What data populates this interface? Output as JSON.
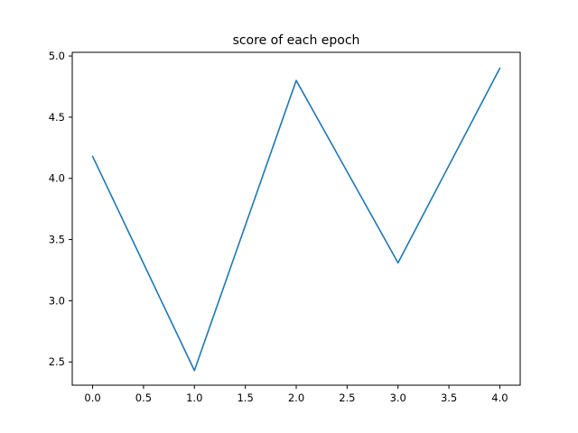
{
  "chart_data": {
    "type": "line",
    "title": "score of each epoch",
    "xlabel": "",
    "ylabel": "",
    "x": [
      0,
      1,
      2,
      3,
      4
    ],
    "series": [
      {
        "values": [
          4.18,
          2.43,
          4.8,
          3.31,
          4.9
        ],
        "color": "#1f77b4"
      }
    ],
    "xlim": [
      -0.2,
      4.2
    ],
    "ylim": [
      2.31,
      5.03
    ],
    "xticks": [
      "0.0",
      "0.5",
      "1.0",
      "1.5",
      "2.0",
      "2.5",
      "3.0",
      "3.5",
      "4.0"
    ],
    "xtick_values": [
      0,
      0.5,
      1,
      1.5,
      2,
      2.5,
      3,
      3.5,
      4
    ],
    "yticks": [
      "2.5",
      "3.0",
      "3.5",
      "4.0",
      "4.5",
      "5.0"
    ],
    "ytick_values": [
      2.5,
      3.0,
      3.5,
      4.0,
      4.5,
      5.0
    ],
    "grid": false,
    "legend": "none"
  }
}
